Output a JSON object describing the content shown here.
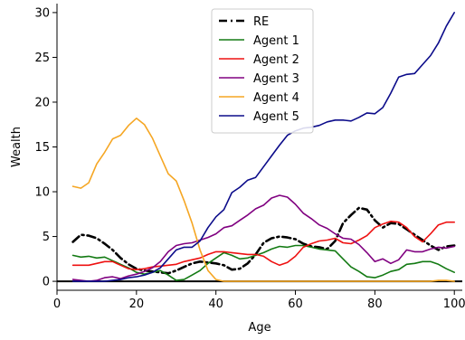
{
  "chart_data": {
    "type": "line",
    "title": "",
    "xlabel": "Age",
    "ylabel": "Wealth",
    "xlim": [
      0,
      102
    ],
    "ylim": [
      -1,
      31
    ],
    "xticks": [
      0,
      20,
      40,
      60,
      80,
      100
    ],
    "yticks": [
      0,
      5,
      10,
      15,
      20,
      25,
      30
    ],
    "grid": false,
    "legend_position": "top-center",
    "baseline": 0,
    "series": [
      {
        "name": "RE",
        "color": "#000000",
        "dash": "dashdot",
        "x": [
          4,
          6,
          8,
          10,
          12,
          14,
          16,
          18,
          20,
          22,
          24,
          26,
          28,
          30,
          32,
          34,
          36,
          38,
          40,
          42,
          44,
          46,
          48,
          50,
          52,
          54,
          56,
          58,
          60,
          62,
          64,
          66,
          68,
          70,
          72,
          74,
          76,
          78,
          80,
          82,
          84,
          86,
          88,
          90,
          92,
          94,
          96,
          98,
          100
        ],
        "y": [
          4.4,
          5.2,
          5.1,
          4.8,
          4.2,
          3.5,
          2.6,
          1.9,
          1.4,
          1.2,
          1.1,
          1.0,
          0.9,
          1.2,
          1.6,
          2.0,
          2.2,
          2.1,
          2.0,
          1.8,
          1.3,
          1.4,
          2.0,
          3.0,
          4.3,
          4.8,
          5.0,
          4.9,
          4.7,
          4.2,
          3.9,
          3.8,
          3.6,
          4.5,
          6.5,
          7.4,
          8.2,
          8.0,
          6.8,
          6.0,
          6.5,
          6.4,
          5.8,
          5.2,
          4.6,
          4.0,
          3.5,
          3.9,
          4.0
        ]
      },
      {
        "name": "Agent 1",
        "color": "#137a13",
        "dash": "solid",
        "x": [
          4,
          6,
          8,
          10,
          12,
          14,
          16,
          18,
          20,
          22,
          24,
          26,
          28,
          30,
          32,
          34,
          36,
          38,
          40,
          42,
          44,
          46,
          48,
          50,
          52,
          54,
          56,
          58,
          60,
          62,
          64,
          66,
          68,
          70,
          72,
          74,
          76,
          78,
          80,
          82,
          84,
          86,
          88,
          90,
          92,
          94,
          96,
          98,
          100
        ],
        "y": [
          2.9,
          2.7,
          2.8,
          2.6,
          2.7,
          2.3,
          1.9,
          1.5,
          1.0,
          0.8,
          1.0,
          1.2,
          0.7,
          0.1,
          0.2,
          0.7,
          1.2,
          2.0,
          2.6,
          3.2,
          2.9,
          2.5,
          2.6,
          2.9,
          3.2,
          3.6,
          3.9,
          3.8,
          4.0,
          4.0,
          3.8,
          3.6,
          3.5,
          3.4,
          2.5,
          1.6,
          1.1,
          0.5,
          0.4,
          0.7,
          1.1,
          1.3,
          1.9,
          2.0,
          2.2,
          2.2,
          1.9,
          1.4,
          1.0
        ]
      },
      {
        "name": "Agent 2",
        "color": "#ee1111",
        "dash": "solid",
        "x": [
          4,
          6,
          8,
          10,
          12,
          14,
          16,
          18,
          20,
          22,
          24,
          26,
          28,
          30,
          32,
          34,
          36,
          38,
          40,
          42,
          44,
          46,
          48,
          50,
          52,
          54,
          56,
          58,
          60,
          62,
          64,
          66,
          68,
          70,
          72,
          74,
          76,
          78,
          80,
          82,
          84,
          86,
          88,
          90,
          92,
          94,
          96,
          98,
          100
        ],
        "y": [
          1.8,
          1.8,
          1.8,
          2.0,
          2.2,
          2.2,
          1.8,
          1.4,
          1.3,
          1.4,
          1.6,
          1.7,
          1.8,
          1.9,
          2.2,
          2.4,
          2.6,
          3.0,
          3.3,
          3.3,
          3.2,
          3.1,
          3.0,
          3.0,
          2.8,
          2.2,
          1.8,
          2.1,
          2.8,
          3.8,
          4.2,
          4.5,
          4.6,
          4.8,
          4.3,
          4.2,
          4.6,
          5.1,
          6.0,
          6.4,
          6.7,
          6.6,
          6.0,
          5.0,
          4.4,
          5.3,
          6.3,
          6.6,
          6.6
        ]
      },
      {
        "name": "Agent 3",
        "color": "#800080",
        "dash": "solid",
        "x": [
          4,
          6,
          8,
          10,
          12,
          14,
          16,
          18,
          20,
          22,
          24,
          26,
          28,
          30,
          32,
          34,
          36,
          38,
          40,
          42,
          44,
          46,
          48,
          50,
          52,
          54,
          56,
          58,
          60,
          62,
          64,
          66,
          68,
          70,
          72,
          74,
          76,
          78,
          80,
          82,
          84,
          86,
          88,
          90,
          92,
          94,
          96,
          98,
          100
        ],
        "y": [
          0.2,
          0.1,
          0.0,
          0.1,
          0.4,
          0.5,
          0.3,
          0.6,
          0.8,
          1.1,
          1.5,
          2.2,
          3.3,
          4.0,
          4.2,
          4.3,
          4.6,
          4.9,
          5.3,
          6.0,
          6.2,
          6.8,
          7.4,
          8.1,
          8.5,
          9.3,
          9.6,
          9.4,
          8.6,
          7.6,
          7.0,
          6.3,
          5.9,
          5.3,
          4.8,
          4.7,
          4.1,
          3.2,
          2.2,
          2.5,
          2.0,
          2.4,
          3.5,
          3.3,
          3.3,
          3.6,
          3.8,
          3.7,
          3.9
        ]
      },
      {
        "name": "Agent 4",
        "color": "#f5a623",
        "dash": "solid",
        "x": [
          4,
          6,
          8,
          10,
          12,
          14,
          16,
          18,
          20,
          22,
          24,
          26,
          28,
          30,
          32,
          34,
          36,
          38,
          40,
          42,
          44,
          46,
          48,
          50,
          52,
          54,
          56,
          58,
          60,
          62,
          64,
          66,
          68,
          70,
          72,
          74,
          76,
          78,
          80,
          82,
          84,
          86,
          88,
          90,
          92,
          94,
          96,
          98,
          100
        ],
        "y": [
          10.6,
          10.4,
          11.0,
          13.1,
          14.4,
          15.9,
          16.3,
          17.4,
          18.2,
          17.5,
          16.0,
          14.0,
          12.0,
          11.2,
          9.0,
          6.5,
          3.5,
          1.2,
          0.2,
          0.0,
          0.0,
          0.0,
          0.0,
          0.0,
          0.0,
          0.0,
          0.0,
          0.0,
          0.0,
          0.0,
          0.0,
          0.0,
          0.0,
          0.0,
          0.0,
          0.0,
          0.0,
          0.0,
          0.0,
          0.0,
          0.0,
          0.0,
          0.0,
          0.0,
          0.0,
          0.0,
          0.1,
          0.1,
          0.0
        ]
      },
      {
        "name": "Agent 5",
        "color": "#0b0b8a",
        "dash": "solid",
        "x": [
          4,
          6,
          8,
          10,
          12,
          14,
          16,
          18,
          20,
          22,
          24,
          26,
          28,
          30,
          32,
          34,
          36,
          38,
          40,
          42,
          44,
          46,
          48,
          50,
          52,
          54,
          56,
          58,
          60,
          62,
          64,
          66,
          68,
          70,
          72,
          74,
          76,
          78,
          80,
          82,
          84,
          86,
          88,
          90,
          92,
          94,
          96,
          98,
          100
        ],
        "y": [
          0.0,
          0.0,
          0.0,
          0.0,
          0.0,
          0.1,
          0.2,
          0.4,
          0.5,
          0.7,
          1.0,
          1.5,
          2.5,
          3.5,
          3.8,
          3.8,
          4.5,
          6.0,
          7.2,
          8.0,
          9.9,
          10.5,
          11.3,
          11.6,
          12.8,
          14.0,
          15.2,
          16.3,
          16.8,
          17.1,
          17.2,
          17.4,
          17.8,
          18.0,
          18.0,
          17.9,
          18.3,
          18.8,
          18.7,
          19.4,
          21.0,
          22.8,
          23.1,
          23.2,
          24.2,
          25.2,
          26.6,
          28.5,
          30.0
        ]
      }
    ]
  }
}
